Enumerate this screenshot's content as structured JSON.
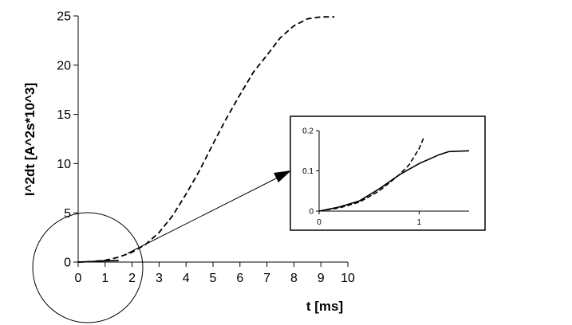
{
  "chart_data": [
    {
      "type": "line",
      "xlabel": "t [ms]",
      "ylabel": "I^2dt [A^2s*10^3]",
      "xlim": [
        0,
        10
      ],
      "ylim": [
        0,
        25
      ],
      "x_ticks": [
        "0",
        "1",
        "2",
        "3",
        "4",
        "5",
        "6",
        "7",
        "8",
        "9",
        "10"
      ],
      "y_ticks": [
        "0",
        "5",
        "10",
        "15",
        "20",
        "25"
      ],
      "grid": false,
      "series": [
        {
          "style": "dashed",
          "x": [
            0,
            0.5,
            1,
            1.5,
            2,
            2.5,
            3,
            3.5,
            4,
            4.5,
            5,
            5.5,
            6,
            6.5,
            7,
            7.5,
            8,
            8.5,
            9,
            9.5
          ],
          "y": [
            0,
            0.05,
            0.18,
            0.5,
            1.0,
            1.8,
            3.0,
            4.7,
            6.9,
            9.3,
            12.0,
            14.6,
            17.0,
            19.3,
            21.0,
            22.8,
            24.0,
            24.7,
            24.9,
            24.9
          ]
        },
        {
          "style": "solid",
          "x": [
            0,
            0.5,
            1,
            1.5
          ],
          "y": [
            0,
            0.05,
            0.13,
            0.15
          ]
        }
      ]
    },
    {
      "type": "line",
      "role": "inset-zoom",
      "xlim": [
        0,
        1.5
      ],
      "ylim": [
        0,
        0.2
      ],
      "x_ticks": [
        "0",
        "1"
      ],
      "y_ticks": [
        "0",
        "0.1",
        "0.2"
      ],
      "grid": false,
      "series": [
        {
          "style": "dashed",
          "x": [
            0,
            0.2,
            0.4,
            0.6,
            0.8,
            0.9,
            1.0,
            1.05
          ],
          "y": [
            0,
            0.008,
            0.022,
            0.05,
            0.09,
            0.115,
            0.155,
            0.185
          ]
        },
        {
          "style": "solid",
          "x": [
            0,
            0.2,
            0.4,
            0.6,
            0.8,
            1.0,
            1.2,
            1.3,
            1.5
          ],
          "y": [
            0,
            0.01,
            0.025,
            0.055,
            0.09,
            0.118,
            0.14,
            0.148,
            0.15
          ]
        }
      ]
    }
  ]
}
